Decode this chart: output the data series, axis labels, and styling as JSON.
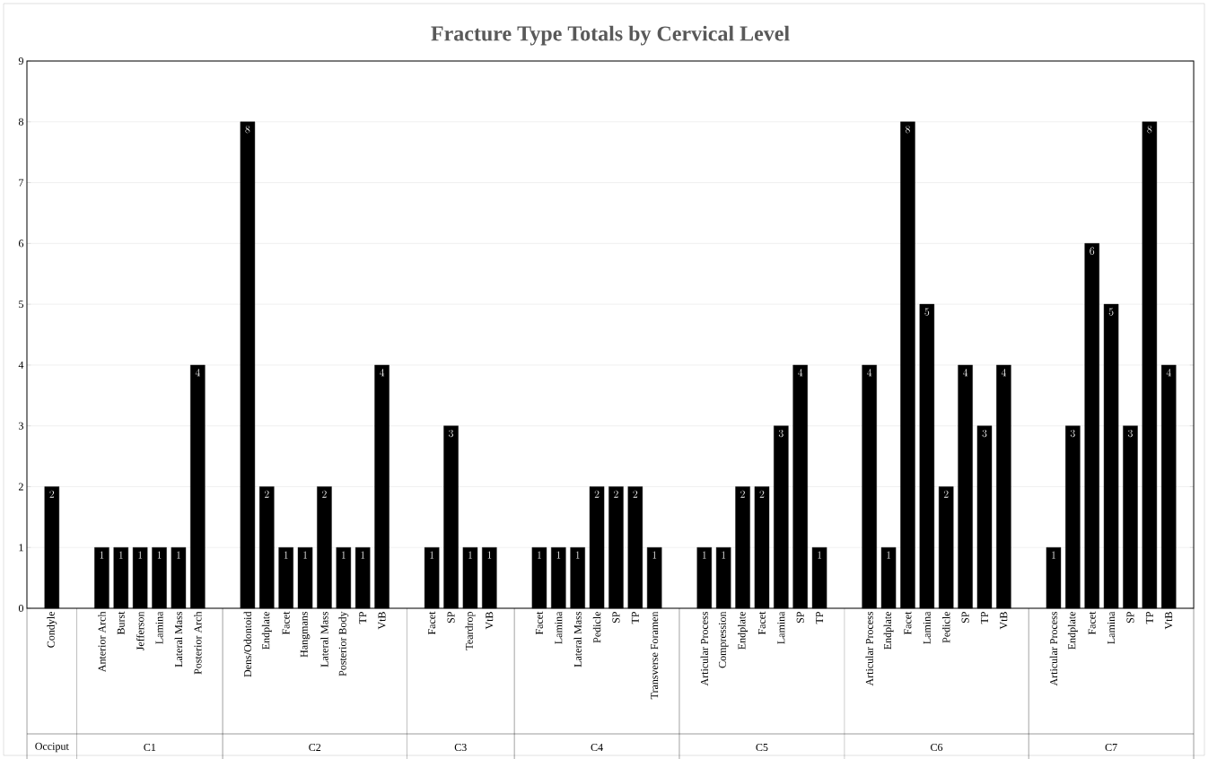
{
  "chart_data": {
    "type": "bar",
    "title": "Fracture Type Totals by Cervical Level",
    "categories": [
      "Condyle",
      "Anterior Arch",
      "Burst",
      "Jefferson",
      "Lamina",
      "Lateral Mass",
      "Posterior Arch",
      "Dens/Odontoid",
      "Endplate",
      "Facet",
      "Hangmans",
      "Lateral Mass",
      "Posterior Body",
      "TP",
      "VtB",
      "Facet",
      "SP",
      "Teardrop",
      "VtB",
      "Facet",
      "Lamina",
      "Lateral Mass",
      "Pedicle",
      "SP",
      "TP",
      "Transverse Foramen",
      "Articular Process",
      "Compression",
      "Endplate",
      "Facet",
      "Lamina",
      "SP",
      "TP",
      "Articular Process",
      "Endplate",
      "Facet",
      "Lamina",
      "Pedicle",
      "SP",
      "TP",
      "VtB",
      "Articular Process",
      "Endplate",
      "Facet",
      "Lamina",
      "SP",
      "TP",
      "VtB"
    ],
    "values": [
      2,
      1,
      1,
      1,
      1,
      1,
      4,
      8,
      2,
      1,
      1,
      2,
      1,
      1,
      4,
      1,
      3,
      1,
      1,
      1,
      1,
      1,
      2,
      2,
      2,
      1,
      1,
      1,
      2,
      2,
      3,
      4,
      1,
      4,
      1,
      8,
      5,
      2,
      4,
      3,
      4,
      1,
      3,
      6,
      5,
      3,
      8,
      4
    ],
    "color": "#000000",
    "annotations": [
      "Occiput",
      "C1",
      "C2",
      "C3",
      "C4",
      "C5",
      "C6",
      "C7"
    ],
    "ylim": [
      0,
      9
    ],
    "yticks": [
      0,
      1,
      2,
      3,
      4,
      5,
      6,
      7,
      8,
      9
    ],
    "grid": "y",
    "data_labels": true
  }
}
